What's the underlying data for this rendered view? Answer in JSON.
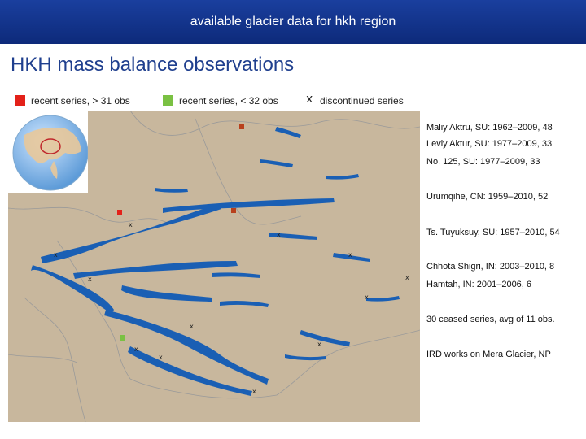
{
  "banner": {
    "title": "available glacier data for hkh region"
  },
  "slide": {
    "title": "HKH mass balance observations"
  },
  "legend": {
    "items": [
      {
        "label": "recent series, > 31 obs",
        "color": "#e32119",
        "symbol": "square"
      },
      {
        "label": "recent series, < 32 obs",
        "color": "#7ac143",
        "symbol": "square"
      },
      {
        "label": "discontinued series",
        "symbol": "x"
      }
    ]
  },
  "sites": [
    "Maliy Aktru, SU: 1962–2009, 48",
    "Leviy Aktur, SU: 1977–2009, 33",
    "No. 125, SU: 1977–2009, 33",
    "Urumqihe, CN: 1959–2010, 52",
    "Ts. Tuyuksuy, SU: 1957–2010, 54",
    "Chhota Shigri, IN: 2003–2010, 8",
    "Hamtah, IN: 2001–2006, 6",
    "30 ceased series, avg of 11 obs.",
    "IRD works on Mera Glacier, NP"
  ],
  "map": {
    "terrain_color": "#c8b79d",
    "glacier_color": "#1a5fb4",
    "border_color": "#9a9a9a",
    "globe_ocean": "#7fb4e6",
    "globe_land": "#e8c89a",
    "highlight_color": "#c0282c"
  }
}
